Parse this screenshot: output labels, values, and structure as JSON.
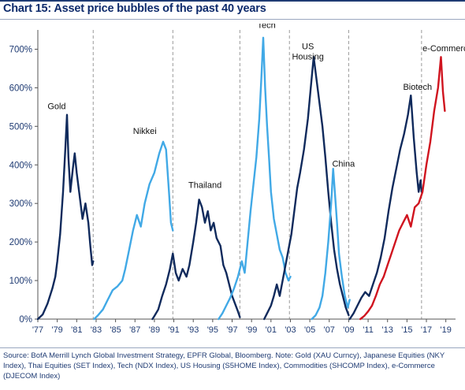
{
  "chart_data": {
    "type": "line",
    "title": "Chart 15: Asset price bubbles of the past 40 years",
    "xlabel": "",
    "ylabel": "",
    "ylim": [
      0,
      750
    ],
    "xlim": [
      1977,
      2020
    ],
    "y_ticks": [
      0,
      100,
      200,
      300,
      400,
      500,
      600,
      700
    ],
    "y_tick_labels": [
      "0%",
      "100%",
      "200%",
      "300%",
      "400%",
      "500%",
      "600%",
      "700%"
    ],
    "x_ticks": [
      1977,
      1979,
      1981,
      1983,
      1985,
      1987,
      1989,
      1991,
      1993,
      1995,
      1997,
      1999,
      2001,
      2003,
      2005,
      2007,
      2009,
      2011,
      2013,
      2015,
      2017,
      2019
    ],
    "x_tick_labels": [
      "'77",
      "'79",
      "'81",
      "'83",
      "'85",
      "'87",
      "'89",
      "'91",
      "'93",
      "'95",
      "'97",
      "'99",
      "'01",
      "'03",
      "'05",
      "'07",
      "'09",
      "'11",
      "'13",
      "'15",
      "'17",
      "'19"
    ],
    "dividers": [
      1982.7,
      1990.9,
      1997.8,
      2002.9,
      2009.0,
      2016.5
    ],
    "grid": false,
    "legend": "none",
    "colors": {
      "dark": "#102a5c",
      "light": "#41a9e6",
      "red": "#d0141f",
      "text": "#1f3b73"
    },
    "series": [
      {
        "name": "Gold",
        "color": "dark",
        "label_pos": [
          1978.0,
          545
        ],
        "points": [
          [
            1977,
            0
          ],
          [
            1977.5,
            12
          ],
          [
            1978,
            40
          ],
          [
            1978.5,
            80
          ],
          [
            1978.8,
            110
          ],
          [
            1979,
            150
          ],
          [
            1979.3,
            220
          ],
          [
            1979.6,
            330
          ],
          [
            1979.85,
            450
          ],
          [
            1980.0,
            530
          ],
          [
            1980.15,
            420
          ],
          [
            1980.35,
            330
          ],
          [
            1980.6,
            390
          ],
          [
            1980.8,
            430
          ],
          [
            1981.0,
            380
          ],
          [
            1981.3,
            320
          ],
          [
            1981.6,
            260
          ],
          [
            1981.9,
            300
          ],
          [
            1982.2,
            250
          ],
          [
            1982.4,
            190
          ],
          [
            1982.6,
            140
          ],
          [
            1982.7,
            150
          ]
        ]
      },
      {
        "name": "Nikkei",
        "color": "light",
        "label_pos": [
          1986.8,
          480
        ],
        "points": [
          [
            1982.8,
            0
          ],
          [
            1983.2,
            10
          ],
          [
            1983.7,
            25
          ],
          [
            1984.2,
            50
          ],
          [
            1984.7,
            75
          ],
          [
            1985.2,
            85
          ],
          [
            1985.7,
            100
          ],
          [
            1986.0,
            130
          ],
          [
            1986.4,
            180
          ],
          [
            1986.8,
            230
          ],
          [
            1987.2,
            270
          ],
          [
            1987.6,
            240
          ],
          [
            1988.0,
            300
          ],
          [
            1988.5,
            350
          ],
          [
            1989.0,
            380
          ],
          [
            1989.5,
            430
          ],
          [
            1989.9,
            460
          ],
          [
            1990.2,
            440
          ],
          [
            1990.5,
            330
          ],
          [
            1990.7,
            250
          ],
          [
            1990.9,
            230
          ]
        ]
      },
      {
        "name": "Thailand",
        "color": "dark",
        "label_pos": [
          1992.5,
          340
        ],
        "points": [
          [
            1988.8,
            0
          ],
          [
            1989.0,
            8
          ],
          [
            1989.4,
            25
          ],
          [
            1989.8,
            60
          ],
          [
            1990.2,
            90
          ],
          [
            1990.6,
            130
          ],
          [
            1990.9,
            170
          ],
          [
            1991.2,
            120
          ],
          [
            1991.5,
            100
          ],
          [
            1991.9,
            130
          ],
          [
            1992.3,
            110
          ],
          [
            1992.6,
            140
          ],
          [
            1993.0,
            200
          ],
          [
            1993.3,
            250
          ],
          [
            1993.6,
            310
          ],
          [
            1993.9,
            290
          ],
          [
            1994.2,
            250
          ],
          [
            1994.5,
            280
          ],
          [
            1994.8,
            230
          ],
          [
            1995.1,
            250
          ],
          [
            1995.4,
            210
          ],
          [
            1995.8,
            190
          ],
          [
            1996.1,
            140
          ],
          [
            1996.4,
            120
          ],
          [
            1996.7,
            90
          ],
          [
            1997.0,
            60
          ],
          [
            1997.3,
            40
          ],
          [
            1997.6,
            20
          ],
          [
            1997.8,
            5
          ]
        ]
      },
      {
        "name": "Tech",
        "color": "light",
        "label_pos": [
          1999.6,
          755
        ],
        "points": [
          [
            1995.6,
            0
          ],
          [
            1996.0,
            15
          ],
          [
            1996.4,
            35
          ],
          [
            1996.8,
            55
          ],
          [
            1997.2,
            80
          ],
          [
            1997.6,
            110
          ],
          [
            1998.0,
            150
          ],
          [
            1998.3,
            120
          ],
          [
            1998.6,
            200
          ],
          [
            1998.9,
            280
          ],
          [
            1999.2,
            350
          ],
          [
            1999.5,
            420
          ],
          [
            1999.8,
            520
          ],
          [
            2000.0,
            620
          ],
          [
            2000.2,
            730
          ],
          [
            2000.4,
            600
          ],
          [
            2000.6,
            500
          ],
          [
            2000.8,
            420
          ],
          [
            2001.0,
            330
          ],
          [
            2001.3,
            260
          ],
          [
            2001.6,
            220
          ],
          [
            2001.9,
            180
          ],
          [
            2002.2,
            160
          ],
          [
            2002.5,
            120
          ],
          [
            2002.8,
            100
          ],
          [
            2003.0,
            110
          ]
        ]
      },
      {
        "name": "US Housing",
        "color": "dark",
        "label_pos": [
          2004.8,
          700
        ],
        "points": [
          [
            2000.3,
            0
          ],
          [
            2000.6,
            15
          ],
          [
            2001.0,
            35
          ],
          [
            2001.3,
            60
          ],
          [
            2001.6,
            90
          ],
          [
            2001.9,
            60
          ],
          [
            2002.2,
            100
          ],
          [
            2002.5,
            140
          ],
          [
            2002.8,
            180
          ],
          [
            2003.1,
            220
          ],
          [
            2003.4,
            280
          ],
          [
            2003.7,
            340
          ],
          [
            2004.0,
            380
          ],
          [
            2004.4,
            440
          ],
          [
            2004.8,
            520
          ],
          [
            2005.1,
            600
          ],
          [
            2005.4,
            680
          ],
          [
            2005.7,
            620
          ],
          [
            2006.0,
            560
          ],
          [
            2006.3,
            500
          ],
          [
            2006.6,
            420
          ],
          [
            2006.9,
            330
          ],
          [
            2007.2,
            250
          ],
          [
            2007.5,
            180
          ],
          [
            2007.8,
            130
          ],
          [
            2008.1,
            90
          ],
          [
            2008.4,
            60
          ],
          [
            2008.7,
            30
          ],
          [
            2009.0,
            10
          ]
        ]
      },
      {
        "name": "China",
        "color": "light",
        "label_pos": [
          2007.3,
          395
        ],
        "points": [
          [
            2005.2,
            0
          ],
          [
            2005.6,
            10
          ],
          [
            2006.0,
            30
          ],
          [
            2006.3,
            60
          ],
          [
            2006.6,
            120
          ],
          [
            2006.9,
            200
          ],
          [
            2007.2,
            300
          ],
          [
            2007.4,
            390
          ],
          [
            2007.6,
            320
          ],
          [
            2007.8,
            250
          ],
          [
            2008.0,
            170
          ],
          [
            2008.3,
            110
          ],
          [
            2008.6,
            60
          ],
          [
            2008.9,
            30
          ],
          [
            2009.1,
            50
          ]
        ]
      },
      {
        "name": "Biotech",
        "color": "dark",
        "label_pos": [
          2014.6,
          595
        ],
        "points": [
          [
            2009.1,
            0
          ],
          [
            2009.5,
            15
          ],
          [
            2009.9,
            35
          ],
          [
            2010.3,
            55
          ],
          [
            2010.7,
            70
          ],
          [
            2011.1,
            60
          ],
          [
            2011.5,
            90
          ],
          [
            2011.9,
            120
          ],
          [
            2012.3,
            160
          ],
          [
            2012.7,
            210
          ],
          [
            2013.1,
            280
          ],
          [
            2013.5,
            340
          ],
          [
            2013.9,
            390
          ],
          [
            2014.3,
            440
          ],
          [
            2014.7,
            480
          ],
          [
            2015.1,
            530
          ],
          [
            2015.4,
            580
          ],
          [
            2015.7,
            470
          ],
          [
            2016.0,
            380
          ],
          [
            2016.2,
            330
          ],
          [
            2016.4,
            360
          ],
          [
            2016.5,
            330
          ]
        ]
      },
      {
        "name": "e-Commerce",
        "color": "red",
        "label_pos": [
          2016.6,
          695
        ],
        "points": [
          [
            2010.2,
            0
          ],
          [
            2010.6,
            8
          ],
          [
            2011.0,
            20
          ],
          [
            2011.4,
            35
          ],
          [
            2011.8,
            60
          ],
          [
            2012.2,
            90
          ],
          [
            2012.6,
            110
          ],
          [
            2013.0,
            140
          ],
          [
            2013.4,
            170
          ],
          [
            2013.8,
            200
          ],
          [
            2014.2,
            230
          ],
          [
            2014.6,
            250
          ],
          [
            2015.0,
            270
          ],
          [
            2015.4,
            240
          ],
          [
            2015.8,
            290
          ],
          [
            2016.2,
            300
          ],
          [
            2016.6,
            330
          ],
          [
            2017.0,
            400
          ],
          [
            2017.4,
            460
          ],
          [
            2017.8,
            540
          ],
          [
            2018.2,
            600
          ],
          [
            2018.5,
            680
          ],
          [
            2018.7,
            590
          ],
          [
            2018.9,
            540
          ]
        ]
      }
    ]
  },
  "source": "Source:  BofA Merrill Lynch Global Investment Strategy, EPFR Global, Bloomberg. Note: Gold (XAU Curncy), Japanese Equities (NKY Index), Thai Equities (SET Index), Tech (NDX Index), US Housing (S5HOME Index), Commodities (SHCOMP Index), e-Commerce (DJECOM Index)"
}
